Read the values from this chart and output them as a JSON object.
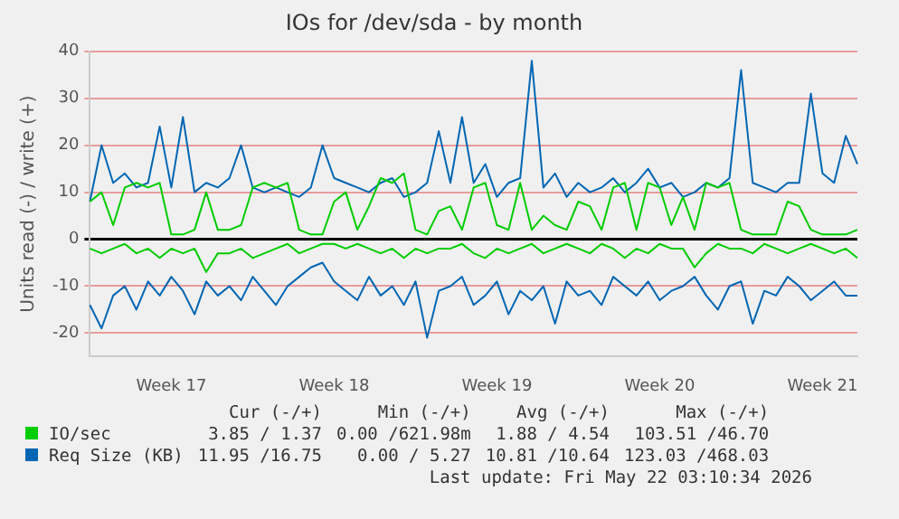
{
  "chart_data": {
    "type": "line",
    "title": "IOs for /dev/sda - by month",
    "ylabel": "Units read (-) / write (+)",
    "categories": [
      null,
      null,
      null,
      null,
      null,
      null,
      null,
      "Week 17",
      null,
      null,
      null,
      null,
      null,
      null,
      null,
      null,
      null,
      null,
      null,
      null,
      null,
      "Week 18",
      null,
      null,
      null,
      null,
      null,
      null,
      null,
      null,
      null,
      null,
      null,
      null,
      null,
      "Week 19",
      null,
      null,
      null,
      null,
      null,
      null,
      null,
      null,
      null,
      null,
      null,
      null,
      null,
      "Week 20",
      null,
      null,
      null,
      null,
      null,
      null,
      null,
      null,
      null,
      null,
      null,
      null,
      null,
      "Week 21",
      null,
      null,
      null
    ],
    "series": [
      {
        "color": "#00cc00",
        "values": [
          -2,
          -3,
          -2,
          -1,
          -3,
          -2,
          -4,
          -2,
          -3,
          -2,
          -7,
          -3,
          -3,
          -2,
          -4,
          -3,
          -2,
          -1,
          -3,
          -2,
          -1,
          -1,
          -2,
          -1,
          -2,
          -3,
          -2,
          -4,
          -2,
          -3,
          -2,
          -2,
          -1,
          -3,
          -4,
          -2,
          -3,
          -2,
          -1,
          -3,
          -2,
          -1,
          -2,
          -3,
          -1,
          -2,
          -4,
          -2,
          -3,
          -1,
          -2,
          -2,
          -6,
          -3,
          -1,
          -2,
          -2,
          -3,
          -1,
          -2,
          -3,
          -2,
          -1,
          -2,
          -3,
          -2,
          -4
        ]
      },
      {
        "name": "IO/sec",
        "color": "#00cc00",
        "values": [
          8,
          10,
          3,
          11,
          12,
          11,
          12,
          1,
          1,
          2,
          10,
          2,
          2,
          3,
          11,
          12,
          11,
          12,
          2,
          1,
          1,
          8,
          10,
          2,
          7,
          13,
          12,
          14,
          2,
          1,
          6,
          7,
          2,
          11,
          12,
          3,
          2,
          12,
          2,
          5,
          3,
          2,
          8,
          7,
          2,
          11,
          12,
          2,
          12,
          11,
          3,
          9,
          2,
          12,
          11,
          12,
          2,
          1,
          1,
          1,
          8,
          7,
          2,
          1,
          1,
          1,
          2
        ]
      },
      {
        "color": "#0066b3",
        "values": [
          -14,
          -19,
          -12,
          -10,
          -15,
          -9,
          -12,
          -8,
          -11,
          -16,
          -9,
          -12,
          -10,
          -13,
          -8,
          -11,
          -14,
          -10,
          -8,
          -6,
          -5,
          -9,
          -11,
          -13,
          -8,
          -12,
          -10,
          -14,
          -9,
          -21,
          -11,
          -10,
          -8,
          -14,
          -12,
          -9,
          -16,
          -11,
          -13,
          -10,
          -18,
          -9,
          -12,
          -11,
          -14,
          -8,
          -10,
          -12,
          -9,
          -13,
          -11,
          -10,
          -8,
          -12,
          -15,
          -10,
          -9,
          -18,
          -11,
          -12,
          -8,
          -10,
          -13,
          -11,
          -9,
          -12,
          -12
        ]
      },
      {
        "name": "Req Size (KB)",
        "color": "#0066b3",
        "values": [
          8,
          20,
          12,
          14,
          11,
          12,
          24,
          11,
          26,
          10,
          12,
          11,
          13,
          20,
          11,
          10,
          11,
          10,
          9,
          11,
          20,
          13,
          12,
          11,
          10,
          12,
          13,
          9,
          10,
          12,
          23,
          12,
          26,
          12,
          16,
          9,
          12,
          13,
          38,
          11,
          14,
          9,
          12,
          10,
          11,
          13,
          10,
          12,
          15,
          11,
          12,
          9,
          10,
          12,
          11,
          13,
          36,
          12,
          11,
          10,
          12,
          12,
          31,
          14,
          12,
          22,
          16
        ]
      }
    ],
    "ylim": [
      -25,
      40
    ],
    "yticks": [
      -20,
      -10,
      0,
      10,
      20,
      30,
      40
    ],
    "grid": "y",
    "legend": "bottom",
    "marker": "none",
    "line_style": "solid",
    "annotations": [
      "Cur (-/+)",
      "Min (-/+)",
      "Avg (-/+)",
      "Max (-/+)",
      "3.85 / 1.37",
      "0.00 /621.98m",
      "1.88 / 4.54",
      "103.51 /46.70",
      "11.95 /16.75",
      "0.00 / 5.27",
      "10.81 /10.64",
      "123.03 /468.03",
      "Last update: Fri May 22 03:10:34 2026"
    ]
  }
}
